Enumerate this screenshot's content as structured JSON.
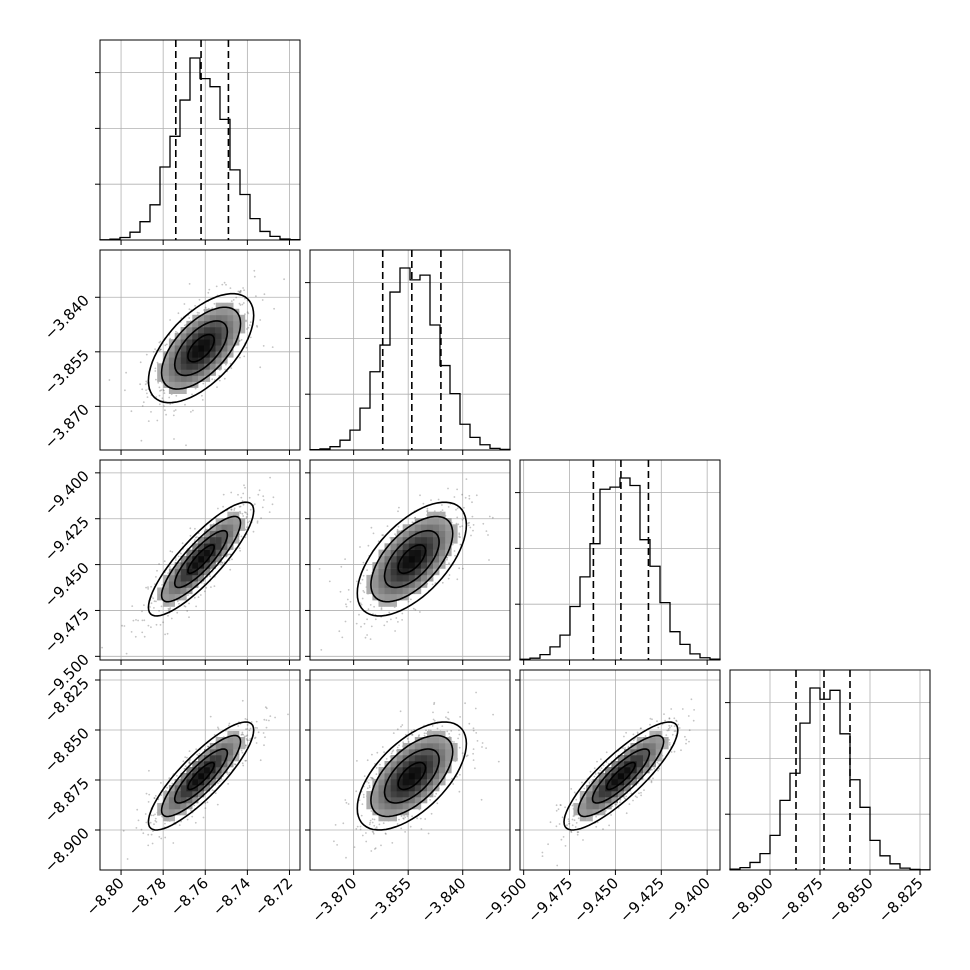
{
  "chart_data": {
    "type": "scatter",
    "subtype": "corner-plot",
    "params": [
      {
        "mean": -8.762,
        "sd": 0.0125,
        "range": [
          -8.81,
          -8.715
        ],
        "ticks": [
          -8.8,
          -8.78,
          -8.76,
          -8.74,
          -8.72
        ],
        "tick_labels": [
          "−8.80",
          "−8.78",
          "−8.76",
          "−8.74",
          "−8.72"
        ],
        "quantiles": [
          -8.774,
          -8.762,
          -8.749
        ]
      },
      {
        "mean": -3.854,
        "sd": 0.0075,
        "range": [
          -3.882,
          -3.827
        ],
        "ticks": [
          -3.87,
          -3.855,
          -3.84
        ],
        "tick_labels": [
          "−3.870",
          "−3.855",
          "−3.840"
        ],
        "quantiles": [
          -3.862,
          -3.854,
          -3.846
        ]
      },
      {
        "mean": -9.447,
        "sd": 0.0155,
        "range": [
          -9.502,
          -9.393
        ],
        "ticks": [
          -9.5,
          -9.475,
          -9.45,
          -9.425,
          -9.4
        ],
        "tick_labels": [
          "−9.500",
          "−9.475",
          "−9.450",
          "−9.425",
          "−9.400"
        ],
        "quantiles": [
          -9.462,
          -9.447,
          -9.432
        ]
      },
      {
        "mean": -8.873,
        "sd": 0.0135,
        "range": [
          -8.92,
          -8.82
        ],
        "ticks": [
          -8.9,
          -8.875,
          -8.85,
          -8.825
        ],
        "tick_labels": [
          "−8.900",
          "−8.875",
          "−8.850",
          "−8.825"
        ],
        "quantiles": [
          -8.887,
          -8.873,
          -8.86
        ]
      }
    ],
    "correlations": [
      [
        1,
        0.6,
        0.85,
        0.85
      ],
      [
        0.6,
        1,
        0.6,
        0.6
      ],
      [
        0.85,
        0.6,
        1,
        0.85
      ],
      [
        0.85,
        0.6,
        0.85,
        1
      ]
    ],
    "contour_levels": [
      "0.5",
      "1.0",
      "1.5",
      "2.0"
    ],
    "colors": {
      "scatter": "#555555",
      "hist_line": "#000000",
      "grid": "#b0b0b0"
    },
    "grid": true
  }
}
